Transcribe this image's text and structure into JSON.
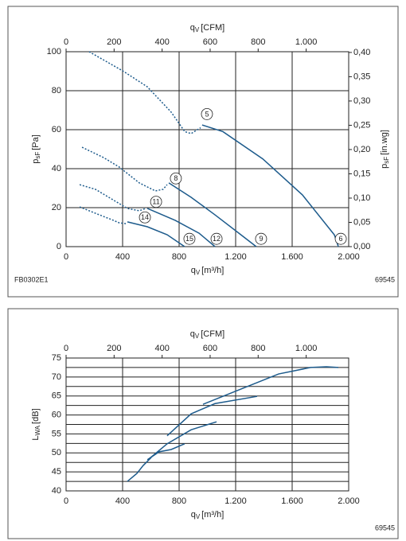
{
  "chart_data": [
    {
      "type": "line",
      "x_label": {
        "symbol": "q",
        "subscript": "V",
        "unit": "[m³/h]"
      },
      "x2_label": {
        "symbol": "q",
        "subscript": "V",
        "unit": "[CFM]"
      },
      "y_label": {
        "symbol": "p",
        "subscript": "sF",
        "unit": "[Pa]"
      },
      "y2_label": {
        "symbol": "p",
        "subscript": "sF",
        "unit": "[in.wg]"
      },
      "footer_left": "FB0302E1",
      "footer_right": "69545",
      "xlim": [
        0,
        2000
      ],
      "xticks": [
        0,
        400,
        800,
        {
          "value": 1200,
          "label": "1.200"
        },
        {
          "value": 1600,
          "label": "1.600"
        },
        {
          "value": 2000,
          "label": "2.000"
        }
      ],
      "x2lim": [
        0,
        1177
      ],
      "x2ticks": [
        0,
        200,
        400,
        600,
        800,
        {
          "value": 1000,
          "label": "1.000"
        }
      ],
      "ylim": [
        0,
        100
      ],
      "yticks": [
        0,
        20,
        40,
        60,
        80,
        100
      ],
      "y2lim": [
        0,
        0.4015
      ],
      "y2ticks": [
        {
          "value": 0,
          "label": "0,00"
        },
        {
          "value": 0.05,
          "label": "0,05"
        },
        {
          "value": 0.1,
          "label": "0,10"
        },
        {
          "value": 0.15,
          "label": "0,15"
        },
        {
          "value": 0.2,
          "label": "0,20"
        },
        {
          "value": 0.25,
          "label": "0,25"
        },
        {
          "value": 0.3,
          "label": "0,30"
        },
        {
          "value": 0.35,
          "label": "0,35"
        },
        {
          "value": 0.4,
          "label": "0,40"
        }
      ],
      "grid": true,
      "series": [
        {
          "color": "#1d5b8c",
          "dashed": true,
          "x": [
            163,
            405,
            575,
            744,
            840,
            885,
            952
          ],
          "values": [
            100,
            90,
            82,
            69,
            59,
            58,
            61
          ]
        },
        {
          "color": "#1d5b8c",
          "dashed": false,
          "x": [
            963,
            1110,
            1392,
            1673,
            1899,
            1927
          ],
          "values": [
            62.4,
            59,
            45,
            26.5,
            6,
            0
          ]
        },
        {
          "color": "#1d5b8c",
          "dashed": true,
          "x": [
            113,
            265,
            377,
            518,
            631,
            687,
            715
          ],
          "values": [
            51,
            45.7,
            40.8,
            32.7,
            28.6,
            29.4,
            31.8
          ]
        },
        {
          "color": "#1d5b8c",
          "dashed": false,
          "x": [
            727,
            885,
            1054,
            1223,
            1346
          ],
          "values": [
            32.7,
            25.3,
            16.3,
            6.9,
            0
          ]
        },
        {
          "color": "#1d5b8c",
          "dashed": true,
          "x": [
            96,
            208,
            321,
            434,
            518,
            563
          ],
          "values": [
            31.8,
            29.4,
            24.5,
            19.6,
            18.4,
            19.6
          ]
        },
        {
          "color": "#1d5b8c",
          "dashed": false,
          "x": [
            575,
            772,
            941,
            1054
          ],
          "values": [
            19.6,
            13.5,
            6.9,
            0
          ]
        },
        {
          "color": "#1d5b8c",
          "dashed": true,
          "x": [
            96,
            208,
            321,
            377,
            423
          ],
          "values": [
            20.4,
            17.1,
            13.9,
            12.2,
            11.8
          ]
        },
        {
          "color": "#1d5b8c",
          "dashed": false,
          "x": [
            434,
            575,
            715,
            839
          ],
          "values": [
            12.7,
            10.2,
            6.1,
            0
          ]
        }
      ],
      "annotations": [
        {
          "text": "5",
          "x": 997,
          "y": 68
        },
        {
          "text": "6",
          "x": 1944,
          "y": 4
        },
        {
          "text": "8",
          "x": 777,
          "y": 35
        },
        {
          "text": "9",
          "x": 1380,
          "y": 4
        },
        {
          "text": "11",
          "x": 637,
          "y": 23
        },
        {
          "text": "12",
          "x": 1065,
          "y": 4
        },
        {
          "text": "14",
          "x": 558,
          "y": 15
        },
        {
          "text": "15",
          "x": 873,
          "y": 4
        }
      ]
    },
    {
      "type": "line",
      "x_label": {
        "symbol": "q",
        "subscript": "V",
        "unit": "[m³/h]"
      },
      "x2_label": {
        "symbol": "q",
        "subscript": "V",
        "unit": "[CFM]"
      },
      "y_label": {
        "symbol": "L",
        "subscript": "WA",
        "unit": "[dB]"
      },
      "footer_right": "69545",
      "xlim": [
        0,
        2000
      ],
      "xticks": [
        0,
        400,
        800,
        {
          "value": 1200,
          "label": "1.200"
        },
        {
          "value": 1600,
          "label": "1.600"
        },
        {
          "value": 2000,
          "label": "2.000"
        }
      ],
      "x2lim": [
        0,
        1177
      ],
      "x2ticks": [
        0,
        200,
        400,
        600,
        800,
        {
          "value": 1000,
          "label": "1.000"
        }
      ],
      "ylim": [
        40,
        75
      ],
      "yticks": [
        40,
        45,
        50,
        55,
        60,
        65,
        70,
        75
      ],
      "ygrid": [
        42.5,
        47.5,
        52.5,
        57.5,
        62.5,
        67.5,
        72.5
      ],
      "grid": true,
      "series": [
        {
          "color": "#1d5b8c",
          "dashed": false,
          "x": [
            969,
            1223,
            1504,
            1730,
            1842,
            1927
          ],
          "values": [
            62.8,
            66.6,
            70.8,
            72.5,
            72.7,
            72.5
          ]
        },
        {
          "color": "#1d5b8c",
          "dashed": false,
          "x": [
            715,
            885,
            1054,
            1352
          ],
          "values": [
            54.5,
            60.3,
            63.0,
            64.9
          ]
        },
        {
          "color": "#1d5b8c",
          "dashed": false,
          "x": [
            580,
            715,
            885,
            1065
          ],
          "values": [
            48.2,
            52.4,
            56.1,
            58.2
          ]
        },
        {
          "color": "#1d5b8c",
          "dashed": false,
          "x": [
            575,
            659,
            744,
            839
          ],
          "values": [
            48.2,
            50.3,
            50.9,
            52.4
          ]
        },
        {
          "color": "#1d5b8c",
          "dashed": false,
          "x": [
            434,
            501,
            546,
            603
          ],
          "values": [
            42.5,
            44.6,
            46.7,
            48.8
          ]
        }
      ]
    }
  ]
}
